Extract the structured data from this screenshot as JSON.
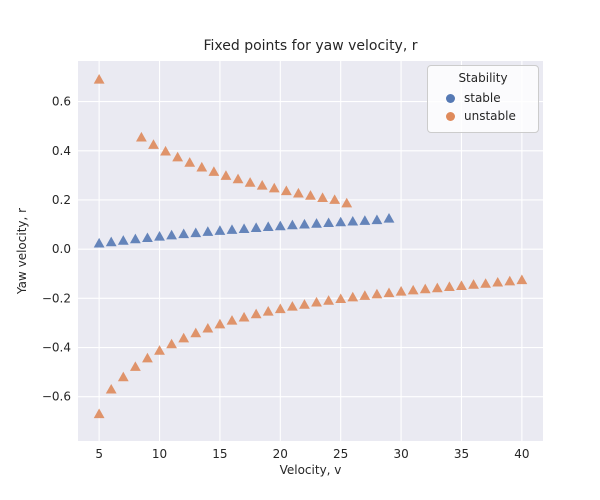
{
  "figure": {
    "title": "Fixed points for yaw velocity, r",
    "xlabel": "Velocity, v",
    "ylabel": "Yaw velocity, r"
  },
  "legend": {
    "title": "Stability",
    "entries": [
      {
        "label": "stable",
        "color": "#4C72B0"
      },
      {
        "label": "unstable",
        "color": "#DD8452"
      }
    ]
  },
  "chart_data": {
    "type": "scatter",
    "marker": "triangle-up",
    "title": "Fixed points for yaw velocity, r",
    "xlabel": "Velocity, v",
    "ylabel": "Yaw velocity, r",
    "xlim": [
      3.25,
      41.75
    ],
    "ylim": [
      -0.78,
      0.765
    ],
    "xticks": [
      5,
      10,
      15,
      20,
      25,
      30,
      35,
      40
    ],
    "xtick_labels": [
      "5",
      "10",
      "15",
      "20",
      "25",
      "30",
      "35",
      "40"
    ],
    "yticks": [
      -0.6,
      -0.4,
      -0.2,
      0,
      0.2,
      0.4,
      0.6
    ],
    "ytick_labels": [
      "−0.6",
      "−0.4",
      "−0.2",
      "0.0",
      "0.2",
      "0.4",
      "0.6"
    ],
    "grid": true,
    "legend_position": "upper right",
    "background": "#EAEAF2",
    "gridline_color": "#FFFFFF",
    "series": [
      {
        "name": "stable",
        "color": "#4C72B0",
        "points": [
          [
            5,
            0.024
          ],
          [
            6,
            0.029
          ],
          [
            7,
            0.035
          ],
          [
            8,
            0.041
          ],
          [
            9,
            0.046
          ],
          [
            10,
            0.052
          ],
          [
            11,
            0.057
          ],
          [
            12,
            0.062
          ],
          [
            13,
            0.066
          ],
          [
            14,
            0.071
          ],
          [
            15,
            0.075
          ],
          [
            16,
            0.079
          ],
          [
            17,
            0.083
          ],
          [
            18,
            0.087
          ],
          [
            19,
            0.091
          ],
          [
            20,
            0.094
          ],
          [
            21,
            0.098
          ],
          [
            22,
            0.101
          ],
          [
            23,
            0.104
          ],
          [
            24,
            0.107
          ],
          [
            25,
            0.11
          ],
          [
            26,
            0.113
          ],
          [
            27,
            0.116
          ],
          [
            28,
            0.119
          ],
          [
            29,
            0.125
          ]
        ]
      },
      {
        "name": "unstable",
        "color": "#DD8452",
        "points": [
          [
            5,
            0.69
          ],
          [
            8.5,
            0.455
          ],
          [
            9.5,
            0.425
          ],
          [
            10.5,
            0.398
          ],
          [
            11.5,
            0.374
          ],
          [
            12.5,
            0.352
          ],
          [
            13.5,
            0.333
          ],
          [
            14.5,
            0.315
          ],
          [
            15.5,
            0.299
          ],
          [
            16.5,
            0.285
          ],
          [
            17.5,
            0.271
          ],
          [
            18.5,
            0.259
          ],
          [
            19.5,
            0.248
          ],
          [
            20.5,
            0.237
          ],
          [
            21.5,
            0.227
          ],
          [
            22.5,
            0.218
          ],
          [
            23.5,
            0.209
          ],
          [
            24.5,
            0.201
          ],
          [
            25.5,
            0.187
          ],
          [
            5,
            -0.67
          ],
          [
            6,
            -0.57
          ],
          [
            7,
            -0.52
          ],
          [
            8,
            -0.478
          ],
          [
            9,
            -0.443
          ],
          [
            10,
            -0.412
          ],
          [
            11,
            -0.386
          ],
          [
            12,
            -0.362
          ],
          [
            13,
            -0.341
          ],
          [
            14,
            -0.322
          ],
          [
            15,
            -0.305
          ],
          [
            16,
            -0.29
          ],
          [
            17,
            -0.277
          ],
          [
            18,
            -0.264
          ],
          [
            19,
            -0.253
          ],
          [
            20,
            -0.243
          ],
          [
            21,
            -0.233
          ],
          [
            22,
            -0.225
          ],
          [
            23,
            -0.216
          ],
          [
            24,
            -0.209
          ],
          [
            25,
            -0.202
          ],
          [
            26,
            -0.195
          ],
          [
            27,
            -0.189
          ],
          [
            28,
            -0.183
          ],
          [
            29,
            -0.178
          ],
          [
            30,
            -0.172
          ],
          [
            31,
            -0.167
          ],
          [
            32,
            -0.162
          ],
          [
            33,
            -0.158
          ],
          [
            34,
            -0.153
          ],
          [
            35,
            -0.149
          ],
          [
            36,
            -0.144
          ],
          [
            37,
            -0.14
          ],
          [
            38,
            -0.135
          ],
          [
            39,
            -0.13
          ],
          [
            40,
            -0.125
          ]
        ]
      }
    ]
  }
}
